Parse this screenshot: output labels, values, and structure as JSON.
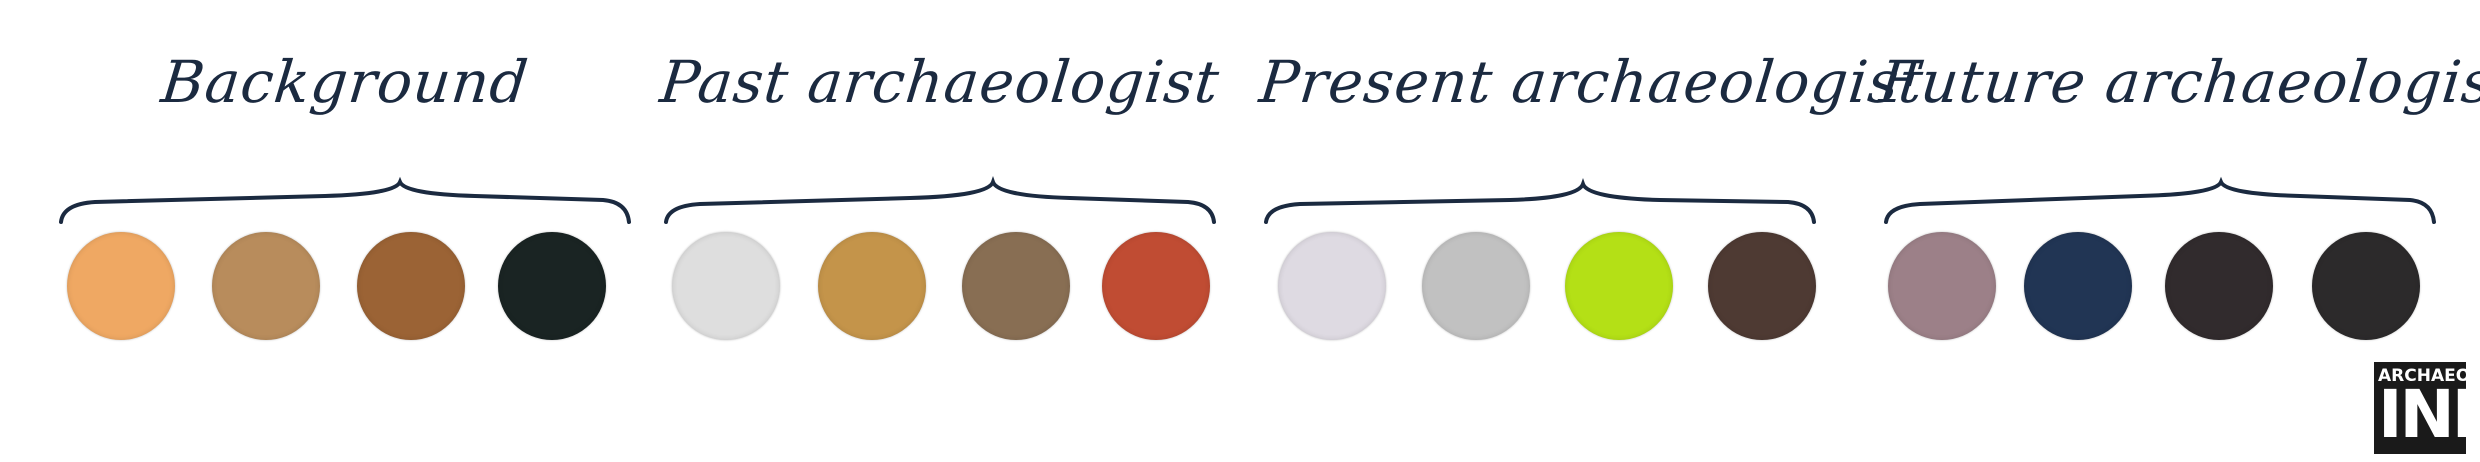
{
  "groups": [
    {
      "title": "Background",
      "swatches": [
        {
          "color": "#efa863"
        },
        {
          "color": "#b88c5c"
        },
        {
          "color": "#9b6335"
        },
        {
          "color": "#1a2423"
        }
      ]
    },
    {
      "title": "Past archaeologist",
      "swatches": [
        {
          "color": "#dedede"
        },
        {
          "color": "#c4944a"
        },
        {
          "color": "#886e53"
        },
        {
          "color": "#c04c33"
        }
      ]
    },
    {
      "title": "Present archaeologist",
      "swatches": [
        {
          "color": "#dedae2"
        },
        {
          "color": "#c1c1c1"
        },
        {
          "color": "#b4e016"
        },
        {
          "color": "#4e3a33"
        }
      ]
    },
    {
      "title": "Future archaeologist",
      "swatches": [
        {
          "color": "#9c8088"
        },
        {
          "color": "#213554"
        },
        {
          "color": "#312b2d"
        },
        {
          "color": "#2c2a2b"
        }
      ]
    }
  ],
  "logo": {
    "top_text": "ARCHAEO",
    "main_text": "INK"
  }
}
